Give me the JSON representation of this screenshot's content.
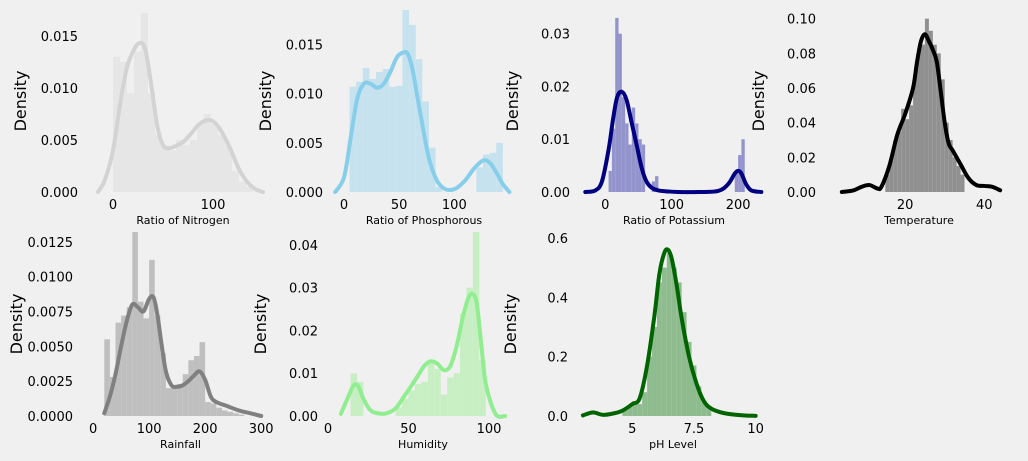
{
  "chart_data": [
    {
      "type": "histogram+kde",
      "xlabel": "Ratio of Nitrogen",
      "ylabel": "Density",
      "bar_color": "#e6e6e6",
      "line_color": "#d3d3d3",
      "xlim": [
        -25,
        165
      ],
      "ylim": [
        0,
        0.0175
      ],
      "xticks": [
        0,
        100
      ],
      "yticks": [
        0.0,
        0.005,
        0.01,
        0.015
      ],
      "ytick_decimals": 3,
      "bins": [
        [
          0,
          7,
          0.013
        ],
        [
          7,
          14,
          0.0125
        ],
        [
          14,
          21,
          0.0095
        ],
        [
          21,
          28,
          0.0135
        ],
        [
          28,
          35,
          0.0172
        ],
        [
          35,
          42,
          0.0095
        ],
        [
          42,
          49,
          0.0055
        ],
        [
          49,
          56,
          0.0045
        ],
        [
          56,
          63,
          0.004
        ],
        [
          63,
          70,
          0.005
        ],
        [
          70,
          77,
          0.0045
        ],
        [
          77,
          84,
          0.005
        ],
        [
          84,
          91,
          0.0065
        ],
        [
          91,
          98,
          0.0075
        ],
        [
          98,
          105,
          0.0065
        ],
        [
          105,
          112,
          0.0055
        ],
        [
          112,
          119,
          0.0045
        ],
        [
          119,
          126,
          0.002
        ],
        [
          126,
          133,
          0.001
        ],
        [
          133,
          140,
          0.0005
        ]
      ],
      "kde_x": [
        -15,
        -8,
        0,
        8,
        14,
        20,
        26,
        32,
        38,
        44,
        50,
        56,
        62,
        70,
        78,
        86,
        94,
        100,
        106,
        112,
        118,
        126,
        134,
        142,
        150
      ],
      "kde_y": [
        0,
        0.0012,
        0.004,
        0.009,
        0.012,
        0.0135,
        0.0143,
        0.0138,
        0.0105,
        0.0065,
        0.0045,
        0.0042,
        0.0044,
        0.0048,
        0.0056,
        0.0065,
        0.0069,
        0.0068,
        0.0062,
        0.0052,
        0.004,
        0.0022,
        0.001,
        0.0003,
        0
      ]
    },
    {
      "type": "histogram+kde",
      "xlabel": "Ratio of Phosphorous",
      "ylabel": "Density",
      "bar_color": "#c6e2ee",
      "line_color": "#87ceeb",
      "xlim": [
        -10,
        155
      ],
      "ylim": [
        0,
        0.0185
      ],
      "xticks": [
        0,
        50,
        100
      ],
      "yticks": [
        0.0,
        0.005,
        0.01,
        0.015
      ],
      "ytick_decimals": 3,
      "bins": [
        [
          5,
          11,
          0.0107
        ],
        [
          11,
          17,
          0.0112
        ],
        [
          17,
          23,
          0.0126
        ],
        [
          23,
          29,
          0.0115
        ],
        [
          29,
          35,
          0.0122
        ],
        [
          35,
          41,
          0.0125
        ],
        [
          41,
          47,
          0.0107
        ],
        [
          47,
          53,
          0.0108
        ],
        [
          53,
          59,
          0.0185
        ],
        [
          59,
          65,
          0.017
        ],
        [
          65,
          71,
          0.0135
        ],
        [
          71,
          77,
          0.0092
        ],
        [
          77,
          83,
          0.0045
        ],
        [
          83,
          89,
          0.0005
        ],
        [
          120,
          126,
          0.0025
        ],
        [
          126,
          132,
          0.0038
        ],
        [
          132,
          138,
          0.004
        ],
        [
          138,
          144,
          0.005
        ]
      ],
      "kde_x": [
        -8,
        0,
        6,
        12,
        18,
        24,
        30,
        36,
        42,
        48,
        54,
        58,
        62,
        66,
        70,
        74,
        78,
        84,
        90,
        96,
        102,
        110,
        118,
        126,
        132,
        138,
        144,
        150
      ],
      "kde_y": [
        0,
        0.0015,
        0.0055,
        0.0095,
        0.011,
        0.011,
        0.0106,
        0.011,
        0.0122,
        0.0137,
        0.0142,
        0.014,
        0.0125,
        0.01,
        0.0075,
        0.005,
        0.003,
        0.0012,
        0.0004,
        0.0002,
        0.0004,
        0.0012,
        0.0024,
        0.0032,
        0.003,
        0.002,
        0.0008,
        0
      ]
    },
    {
      "type": "histogram+kde",
      "xlabel": "Ratio of Potassium",
      "ylabel": "Density",
      "bar_color": "#9494cc",
      "line_color": "#000080",
      "xlim": [
        -38,
        245
      ],
      "ylim": [
        0,
        0.0345
      ],
      "xticks": [
        0,
        100,
        200
      ],
      "yticks": [
        0.0,
        0.01,
        0.02,
        0.03
      ],
      "ytick_decimals": 2,
      "bins": [
        [
          5,
          10,
          0.004
        ],
        [
          10,
          15,
          0.012
        ],
        [
          15,
          20,
          0.033
        ],
        [
          20,
          25,
          0.03
        ],
        [
          25,
          30,
          0.018
        ],
        [
          30,
          35,
          0.013
        ],
        [
          35,
          40,
          0.009
        ],
        [
          40,
          45,
          0.016
        ],
        [
          45,
          50,
          0.013
        ],
        [
          50,
          55,
          0.01
        ],
        [
          55,
          60,
          0.009
        ],
        [
          70,
          75,
          0.002
        ],
        [
          75,
          80,
          0.003
        ],
        [
          195,
          200,
          0.004
        ],
        [
          200,
          205,
          0.007
        ],
        [
          205,
          210,
          0.01
        ]
      ],
      "kde_x": [
        -30,
        -15,
        -5,
        5,
        12,
        18,
        25,
        32,
        40,
        48,
        55,
        62,
        70,
        80,
        95,
        110,
        140,
        170,
        185,
        195,
        200,
        205,
        212,
        220,
        235
      ],
      "kde_y": [
        0,
        0.0003,
        0.002,
        0.008,
        0.014,
        0.018,
        0.019,
        0.0175,
        0.013,
        0.0085,
        0.0045,
        0.002,
        0.0008,
        0.0003,
        0.0001,
        0,
        0,
        0.0002,
        0.0015,
        0.0035,
        0.004,
        0.0035,
        0.0015,
        0.0003,
        0
      ]
    },
    {
      "type": "histogram+kde",
      "xlabel": "Temperature",
      "ylabel": "Density",
      "bar_color": "#909090",
      "line_color": "#000000",
      "xlim": [
        0,
        47
      ],
      "ylim": [
        0,
        0.105
      ],
      "xticks": [
        20,
        40
      ],
      "yticks": [
        0.0,
        0.02,
        0.04,
        0.06,
        0.08,
        0.1
      ],
      "ytick_decimals": 2,
      "bins": [
        [
          15,
          16,
          0.01
        ],
        [
          16,
          17,
          0.018
        ],
        [
          17,
          18,
          0.03
        ],
        [
          18,
          19,
          0.035
        ],
        [
          19,
          20,
          0.048
        ],
        [
          20,
          21,
          0.042
        ],
        [
          21,
          22,
          0.05
        ],
        [
          22,
          23,
          0.068
        ],
        [
          23,
          24,
          0.082
        ],
        [
          24,
          25,
          0.085
        ],
        [
          25,
          26,
          0.1
        ],
        [
          26,
          27,
          0.093
        ],
        [
          27,
          28,
          0.085
        ],
        [
          28,
          29,
          0.08
        ],
        [
          29,
          30,
          0.065
        ],
        [
          30,
          31,
          0.04
        ],
        [
          31,
          32,
          0.03
        ],
        [
          32,
          33,
          0.02
        ],
        [
          33,
          34,
          0.015
        ],
        [
          34,
          35,
          0.01
        ]
      ],
      "kde_x": [
        4,
        7,
        9,
        11,
        13,
        14,
        16,
        18,
        20,
        22,
        23,
        24,
        25,
        26,
        27,
        28,
        29,
        30,
        31,
        32,
        34,
        36,
        38,
        40,
        42,
        44
      ],
      "kde_y": [
        0,
        0.001,
        0.003,
        0.004,
        0.002,
        0.003,
        0.015,
        0.033,
        0.045,
        0.06,
        0.075,
        0.087,
        0.091,
        0.087,
        0.082,
        0.075,
        0.058,
        0.04,
        0.028,
        0.024,
        0.016,
        0.008,
        0.004,
        0.0035,
        0.003,
        0.001
      ]
    },
    {
      "type": "histogram+kde",
      "xlabel": "Rainfall",
      "ylabel": "Density",
      "bar_color": "#bfbfbf",
      "line_color": "#808080",
      "xlim": [
        -18,
        330
      ],
      "ylim": [
        0,
        0.0132
      ],
      "xticks": [
        0,
        100,
        200,
        300
      ],
      "yticks": [
        0.0,
        0.0025,
        0.005,
        0.0075,
        0.01,
        0.0125
      ],
      "ytick_decimals": 4,
      "bins": [
        [
          20,
          30,
          0.0055
        ],
        [
          30,
          40,
          0.0028
        ],
        [
          40,
          50,
          0.0067
        ],
        [
          50,
          60,
          0.0072
        ],
        [
          60,
          70,
          0.0078
        ],
        [
          70,
          80,
          0.0132
        ],
        [
          80,
          90,
          0.0082
        ],
        [
          90,
          100,
          0.007
        ],
        [
          100,
          110,
          0.0112
        ],
        [
          110,
          120,
          0.0072
        ],
        [
          120,
          130,
          0.0045
        ],
        [
          130,
          140,
          0.002
        ],
        [
          140,
          150,
          0.0022
        ],
        [
          150,
          160,
          0.0023
        ],
        [
          160,
          170,
          0.003
        ],
        [
          170,
          180,
          0.004
        ],
        [
          180,
          190,
          0.0043
        ],
        [
          190,
          200,
          0.0053
        ],
        [
          200,
          210,
          0.001
        ],
        [
          210,
          220,
          0.0009
        ],
        [
          220,
          230,
          0.0006
        ],
        [
          230,
          240,
          0.0004
        ],
        [
          240,
          250,
          0.0003
        ],
        [
          250,
          260,
          0.0002
        ],
        [
          260,
          270,
          0.0001
        ]
      ],
      "kde_x": [
        20,
        30,
        40,
        50,
        60,
        70,
        80,
        90,
        100,
        108,
        115,
        122,
        130,
        140,
        150,
        160,
        170,
        180,
        190,
        200,
        210,
        220,
        240,
        260,
        280,
        300
      ],
      "kde_y": [
        0.0002,
        0.0014,
        0.003,
        0.005,
        0.0068,
        0.008,
        0.0078,
        0.0075,
        0.0084,
        0.0085,
        0.0072,
        0.0052,
        0.0032,
        0.0022,
        0.0021,
        0.0022,
        0.0025,
        0.0029,
        0.0032,
        0.0026,
        0.0014,
        0.001,
        0.0007,
        0.0004,
        0.0002,
        0
      ]
    },
    {
      "type": "histogram+kde",
      "xlabel": "Humidity",
      "ylabel": "Density",
      "bar_color": "#c8efc4",
      "line_color": "#90ee90",
      "xlim": [
        0,
        118
      ],
      "ylim": [
        0,
        0.043
      ],
      "xticks": [
        0,
        50,
        100
      ],
      "yticks": [
        0.0,
        0.01,
        0.02,
        0.03,
        0.04
      ],
      "ytick_decimals": 2,
      "bins": [
        [
          14,
          18,
          0.01
        ],
        [
          18,
          22,
          0.008
        ],
        [
          42,
          46,
          0.002
        ],
        [
          46,
          50,
          0.004
        ],
        [
          50,
          54,
          0.006
        ],
        [
          54,
          58,
          0.0075
        ],
        [
          58,
          62,
          0.008
        ],
        [
          62,
          66,
          0.013
        ],
        [
          66,
          70,
          0.011
        ],
        [
          70,
          74,
          0.005
        ],
        [
          74,
          78,
          0.009
        ],
        [
          78,
          82,
          0.01
        ],
        [
          82,
          86,
          0.024
        ],
        [
          86,
          90,
          0.03
        ],
        [
          90,
          94,
          0.043
        ],
        [
          94,
          98,
          0.013
        ]
      ],
      "kde_x": [
        8,
        12,
        16,
        19,
        22,
        26,
        30,
        36,
        42,
        48,
        52,
        56,
        60,
        64,
        68,
        72,
        76,
        80,
        84,
        88,
        92,
        95,
        98,
        104,
        110
      ],
      "kde_y": [
        0.0005,
        0.004,
        0.0072,
        0.0068,
        0.004,
        0.0015,
        0.0007,
        0.0006,
        0.0018,
        0.005,
        0.0072,
        0.0095,
        0.0118,
        0.0128,
        0.0122,
        0.0107,
        0.0117,
        0.0165,
        0.0235,
        0.0282,
        0.027,
        0.0175,
        0.0075,
        0.0005,
        0
      ]
    },
    {
      "type": "histogram+kde",
      "xlabel": "pH Level",
      "ylabel": "Density",
      "bar_color": "#8fbc8f",
      "line_color": "#006400",
      "xlim": [
        2.8,
        10.5
      ],
      "ylim": [
        0,
        0.62
      ],
      "xticks": [
        5.0,
        7.5,
        10.0
      ],
      "yticks": [
        0.0,
        0.2,
        0.4,
        0.6
      ],
      "ytick_decimals": 1,
      "bins": [
        [
          4.6,
          4.8,
          0.02
        ],
        [
          4.8,
          5.0,
          0.03
        ],
        [
          5.0,
          5.2,
          0.05
        ],
        [
          5.2,
          5.4,
          0.04
        ],
        [
          5.4,
          5.6,
          0.08
        ],
        [
          5.6,
          5.8,
          0.2
        ],
        [
          5.8,
          6.0,
          0.3
        ],
        [
          6.0,
          6.2,
          0.45
        ],
        [
          6.2,
          6.4,
          0.5
        ],
        [
          6.4,
          6.6,
          0.55
        ],
        [
          6.6,
          6.8,
          0.5
        ],
        [
          6.8,
          7.0,
          0.45
        ],
        [
          7.0,
          7.2,
          0.35
        ],
        [
          7.2,
          7.4,
          0.25
        ],
        [
          7.4,
          7.6,
          0.17
        ],
        [
          7.6,
          7.8,
          0.1
        ],
        [
          7.8,
          8.0,
          0.05
        ],
        [
          8.0,
          8.2,
          0.03
        ]
      ],
      "kde_x": [
        3.0,
        3.4,
        3.8,
        4.2,
        4.6,
        5.0,
        5.3,
        5.6,
        5.9,
        6.1,
        6.3,
        6.45,
        6.6,
        6.8,
        7.0,
        7.3,
        7.6,
        7.9,
        8.2,
        8.6,
        9.0,
        9.5,
        10.0
      ],
      "kde_y": [
        0.002,
        0.012,
        0.004,
        0.008,
        0.018,
        0.04,
        0.06,
        0.17,
        0.34,
        0.48,
        0.55,
        0.56,
        0.53,
        0.44,
        0.33,
        0.2,
        0.11,
        0.05,
        0.025,
        0.012,
        0.006,
        0.002,
        0.0005
      ]
    }
  ]
}
